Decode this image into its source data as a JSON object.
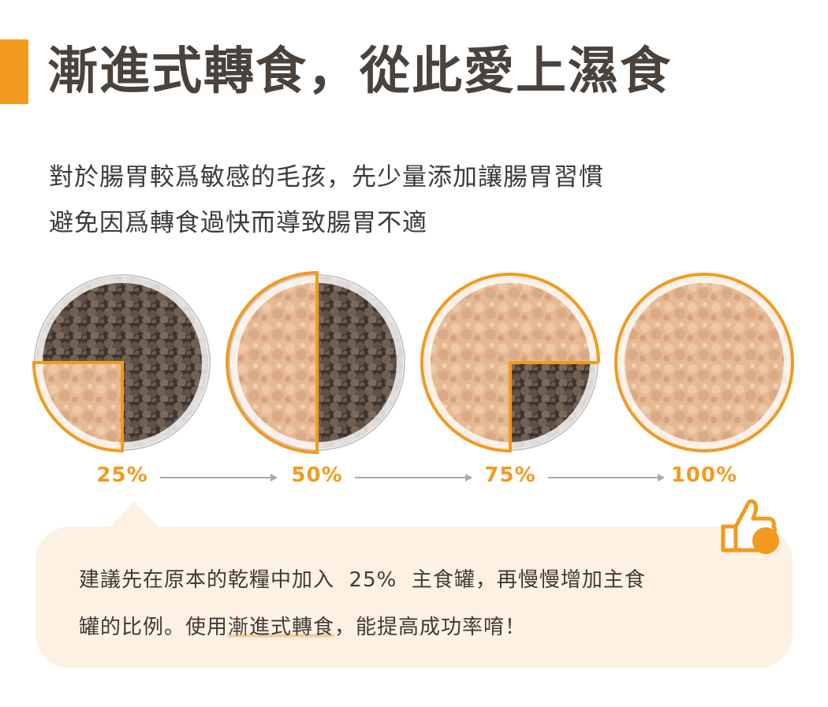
{
  "title": "漸進式轉食，從此愛上濕食",
  "subtitle": [
    "對於腸胃較爲敏感的毛孩，先少量添加讓腸胃習慣",
    "避免因爲轉食過快而導致腸胃不適"
  ],
  "steps": [
    {
      "label": "25%",
      "wet_fraction": 0.25
    },
    {
      "label": "50%",
      "wet_fraction": 0.5
    },
    {
      "label": "75%",
      "wet_fraction": 0.75
    },
    {
      "label": "100%",
      "wet_fraction": 1.0
    }
  ],
  "tip": {
    "line1": "建議先在原本的乾糧中加入  25%  主食罐，再慢慢增加主食",
    "line2_pre": "罐的比例。使用",
    "line2_highlight": "漸進式轉食",
    "line2_post": "，能提高成功率唷！"
  },
  "icons": {
    "arrow": "arrow-right-icon",
    "thumb": "thumbs-up-icon"
  },
  "colors": {
    "accent": "#f39a1e",
    "text": "#4a423c",
    "bubble": "#fdf1e3",
    "kibble": "#5a4b40",
    "wet_food": "#e8b894"
  }
}
